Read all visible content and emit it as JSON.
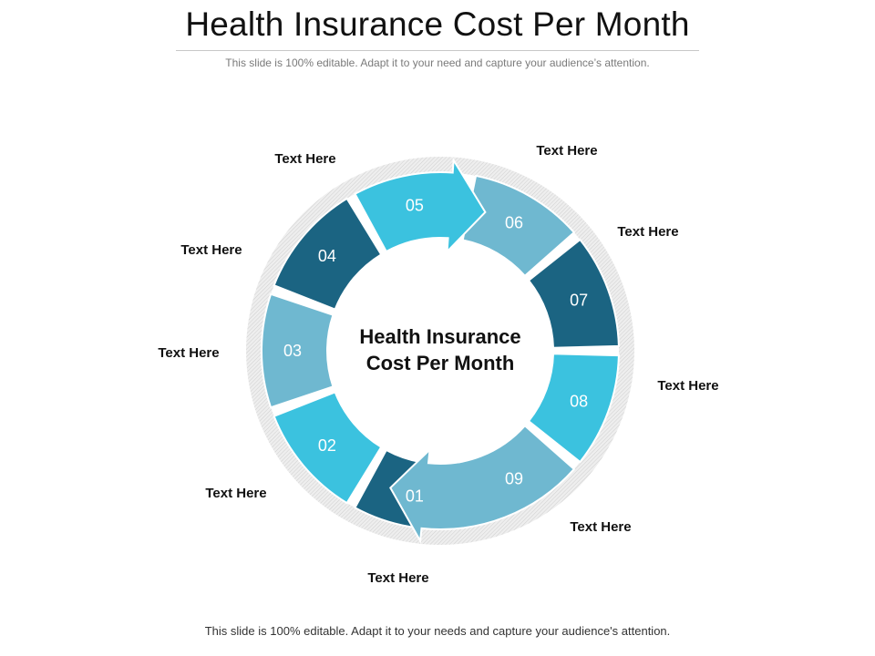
{
  "slide": {
    "title": "Health Insurance Cost Per Month",
    "subtitle": "This slide is 100% editable. Adapt it to your need and capture your audience’s attention.",
    "footer": "This slide is 100% editable. Adapt it to your needs and capture your audience's attention."
  },
  "diagram": {
    "center_line1": "Health Insurance",
    "center_line2": "Cost Per Month",
    "colors": {
      "dark": "#1b6482",
      "bright": "#3bc2df",
      "light": "#6fb8d0",
      "ring": "#e3e3e3"
    },
    "segments": [
      {
        "number": "01",
        "label": "Text Here",
        "shade": "dark"
      },
      {
        "number": "02",
        "label": "Text Here",
        "shade": "bright"
      },
      {
        "number": "03",
        "label": "Text Here",
        "shade": "light"
      },
      {
        "number": "04",
        "label": "Text Here",
        "shade": "dark"
      },
      {
        "number": "05",
        "label": "Text Here",
        "shade": "bright"
      },
      {
        "number": "06",
        "label": "Text Here",
        "shade": "light"
      },
      {
        "number": "07",
        "label": "Text Here",
        "shade": "dark"
      },
      {
        "number": "08",
        "label": "Text Here",
        "shade": "bright"
      },
      {
        "number": "09",
        "label": "Text Here",
        "shade": "light"
      }
    ]
  }
}
